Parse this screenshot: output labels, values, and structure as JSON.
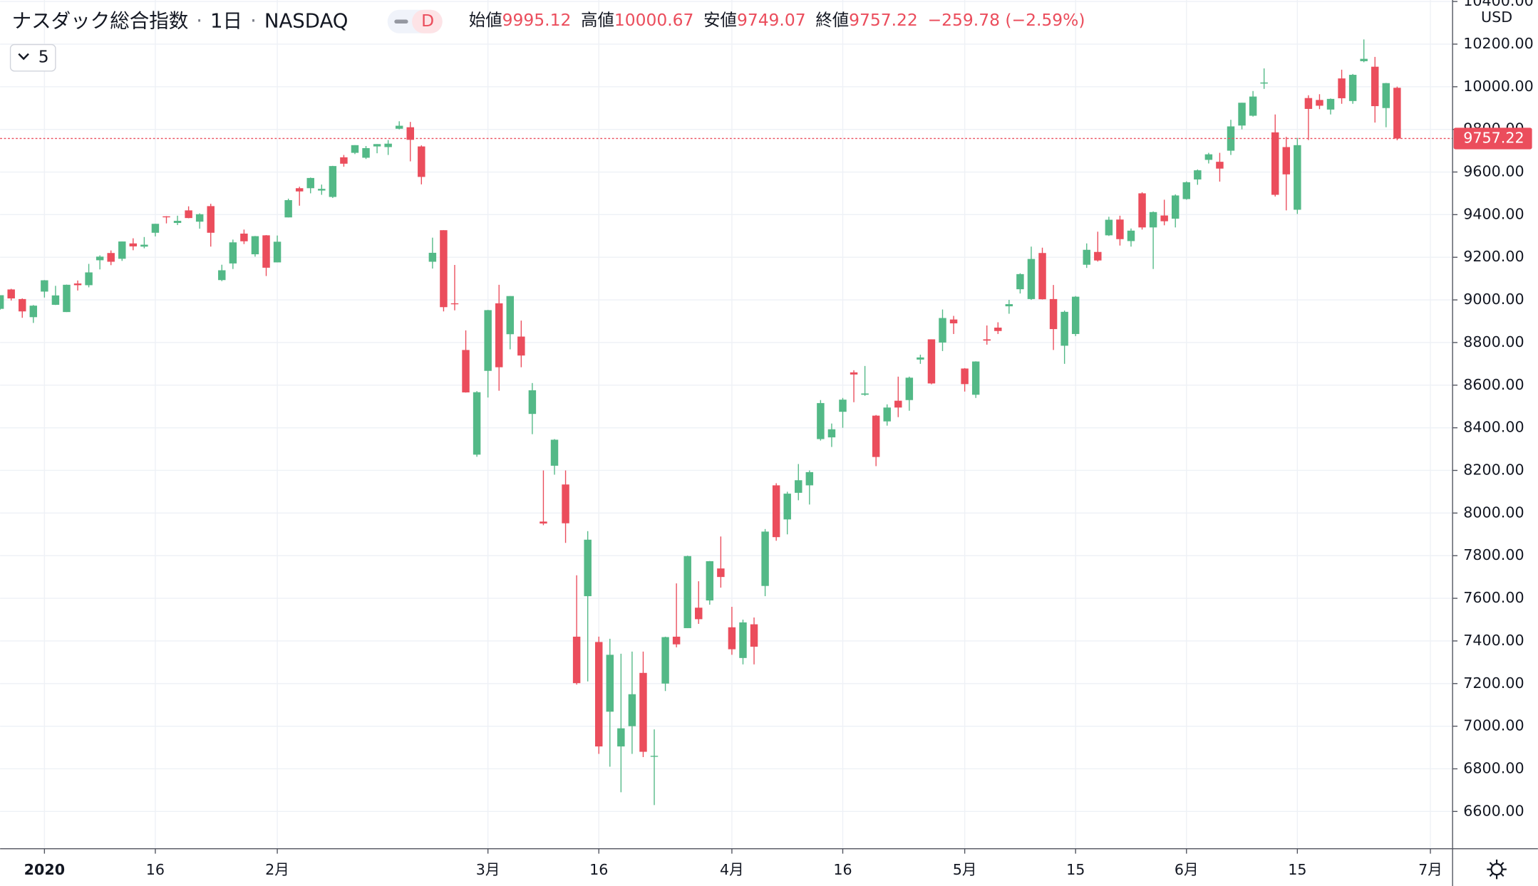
{
  "header": {
    "title": "ナスダック総合指数",
    "interval": "1日",
    "exchange": "NASDAQ",
    "badge": "D",
    "ohlc": [
      {
        "label": "始値",
        "value": 9995.12
      },
      {
        "label": "高値",
        "value": 10000.67
      },
      {
        "label": "安値",
        "value": 9749.07
      },
      {
        "label": "終値",
        "value": 9757.22
      }
    ],
    "change": "−259.78 (−2.59%)",
    "indicator_count": 5,
    "currency": "USD"
  },
  "chart_data": {
    "type": "candlestick",
    "up_color": "#53b987",
    "down_color": "#eb4d5c",
    "grid": true,
    "xlim": [
      0,
      131
    ],
    "ylim": [
      6425,
      10407
    ],
    "xticks": [
      {
        "value": 4,
        "label": "2020"
      },
      {
        "value": 14,
        "label": "16"
      },
      {
        "value": 25,
        "label": "2月"
      },
      {
        "value": 44,
        "label": "3月"
      },
      {
        "value": 54,
        "label": "16"
      },
      {
        "value": 66,
        "label": "4月"
      },
      {
        "value": 76,
        "label": "16"
      },
      {
        "value": 87,
        "label": "5月"
      },
      {
        "value": 97,
        "label": "15"
      },
      {
        "value": 107,
        "label": "6月"
      },
      {
        "value": 117,
        "label": "15"
      },
      {
        "value": 129,
        "label": "7月"
      }
    ],
    "yticks": [
      {
        "value": 6600,
        "label": "6600.00"
      },
      {
        "value": 6800,
        "label": "6800.00"
      },
      {
        "value": 7000,
        "label": "7000.00"
      },
      {
        "value": 7200,
        "label": "7200.00"
      },
      {
        "value": 7400,
        "label": "7400.00"
      },
      {
        "value": 7600,
        "label": "7600.00"
      },
      {
        "value": 7800,
        "label": "7800.00"
      },
      {
        "value": 8000,
        "label": "8000.00"
      },
      {
        "value": 8200,
        "label": "8200.00"
      },
      {
        "value": 8400,
        "label": "8400.00"
      },
      {
        "value": 8600,
        "label": "8600.00"
      },
      {
        "value": 8800,
        "label": "8800.00"
      },
      {
        "value": 9000,
        "label": "9000.00"
      },
      {
        "value": 9200,
        "label": "9200.00"
      },
      {
        "value": 9400,
        "label": "9400.00"
      },
      {
        "value": 9600,
        "label": "9600.00"
      },
      {
        "value": 9800,
        "label": "9800.00"
      },
      {
        "value": 10000,
        "label": "10000.00"
      },
      {
        "value": 10200,
        "label": "10200.00"
      },
      {
        "value": 10400,
        "label": "10400.00"
      }
    ],
    "ohlc": [
      [
        8958,
        9022,
        8954,
        9022
      ],
      [
        9049,
        9052,
        8997,
        9007
      ],
      [
        9004,
        9007,
        8916,
        8946
      ],
      [
        8919,
        8976,
        8892,
        8973
      ],
      [
        9039,
        9093,
        9011,
        9092
      ],
      [
        8977,
        9066,
        8976,
        9021
      ],
      [
        8943,
        9072,
        8943,
        9071
      ],
      [
        9077,
        9091,
        9044,
        9069
      ],
      [
        9069,
        9169,
        9059,
        9129
      ],
      [
        9186,
        9209,
        9143,
        9203
      ],
      [
        9220,
        9232,
        9163,
        9179
      ],
      [
        9193,
        9274,
        9183,
        9274
      ],
      [
        9265,
        9289,
        9233,
        9251
      ],
      [
        9250,
        9295,
        9242,
        9259
      ],
      [
        9315,
        9357,
        9298,
        9357
      ],
      [
        9392,
        9393,
        9359,
        9389
      ],
      [
        9361,
        9395,
        9351,
        9371
      ],
      [
        9420,
        9439,
        9383,
        9384
      ],
      [
        9367,
        9406,
        9334,
        9402
      ],
      [
        9440,
        9451,
        9250,
        9315
      ],
      [
        9093,
        9165,
        9088,
        9139
      ],
      [
        9171,
        9283,
        9145,
        9270
      ],
      [
        9311,
        9330,
        9262,
        9275
      ],
      [
        9214,
        9300,
        9203,
        9299
      ],
      [
        9303,
        9304,
        9112,
        9151
      ],
      [
        9176,
        9302,
        9176,
        9273
      ],
      [
        9387,
        9475,
        9387,
        9468
      ],
      [
        9524,
        9531,
        9442,
        9509
      ],
      [
        9524,
        9574,
        9500,
        9572
      ],
      [
        9513,
        9541,
        9493,
        9521
      ],
      [
        9483,
        9629,
        9478,
        9628
      ],
      [
        9669,
        9680,
        9625,
        9639
      ],
      [
        9690,
        9726,
        9684,
        9726
      ],
      [
        9667,
        9722,
        9661,
        9712
      ],
      [
        9720,
        9731,
        9688,
        9731
      ],
      [
        9717,
        9750,
        9680,
        9733
      ],
      [
        9803,
        9838,
        9800,
        9817
      ],
      [
        9810,
        9835,
        9650,
        9751
      ],
      [
        9720,
        9725,
        9542,
        9577
      ],
      [
        9179,
        9292,
        9147,
        9221
      ],
      [
        9327,
        9327,
        8946,
        8966
      ],
      [
        8984,
        9164,
        8951,
        8981
      ],
      [
        8765,
        8857,
        8565,
        8566
      ],
      [
        8274,
        8572,
        8264,
        8567
      ],
      [
        8667,
        8953,
        8542,
        8952
      ],
      [
        8984,
        9071,
        8574,
        8684
      ],
      [
        8839,
        9018,
        8768,
        9018
      ],
      [
        8828,
        8903,
        8684,
        8739
      ],
      [
        8465,
        8610,
        8370,
        8576
      ],
      [
        7960,
        8200,
        7943,
        7951
      ],
      [
        8222,
        8347,
        8180,
        8344
      ],
      [
        8134,
        8200,
        7860,
        7952
      ],
      [
        7420,
        7708,
        7195,
        7202
      ],
      [
        7610,
        7915,
        7210,
        7875
      ],
      [
        7395,
        7420,
        6870,
        6905
      ],
      [
        7068,
        7410,
        6810,
        7335
      ],
      [
        6905,
        7340,
        6690,
        6990
      ],
      [
        7000,
        7350,
        6870,
        7150
      ],
      [
        7250,
        7350,
        6855,
        6880
      ],
      [
        6860,
        6985,
        6630,
        6861
      ],
      [
        7200,
        7420,
        7165,
        7418
      ],
      [
        7420,
        7670,
        7370,
        7384
      ],
      [
        7460,
        7800,
        7460,
        7798
      ],
      [
        7556,
        7680,
        7480,
        7502
      ],
      [
        7590,
        7775,
        7570,
        7774
      ],
      [
        7740,
        7890,
        7650,
        7700
      ],
      [
        7464,
        7560,
        7335,
        7361
      ],
      [
        7320,
        7500,
        7290,
        7487
      ],
      [
        7478,
        7510,
        7290,
        7373
      ],
      [
        7658,
        7925,
        7610,
        7913
      ],
      [
        8130,
        8140,
        7870,
        7887
      ],
      [
        7970,
        8100,
        7900,
        8091
      ],
      [
        8095,
        8230,
        8060,
        8154
      ],
      [
        8130,
        8200,
        8040,
        8192
      ],
      [
        8347,
        8530,
        8340,
        8516
      ],
      [
        8355,
        8420,
        8310,
        8393
      ],
      [
        8475,
        8540,
        8400,
        8532
      ],
      [
        8660,
        8670,
        8520,
        8650
      ],
      [
        8555,
        8690,
        8550,
        8561
      ],
      [
        8457,
        8460,
        8220,
        8263
      ],
      [
        8430,
        8510,
        8410,
        8495
      ],
      [
        8527,
        8640,
        8450,
        8495
      ],
      [
        8530,
        8640,
        8480,
        8635
      ],
      [
        8720,
        8743,
        8700,
        8730
      ],
      [
        8815,
        8815,
        8604,
        8608
      ],
      [
        8800,
        8955,
        8760,
        8915
      ],
      [
        8908,
        8925,
        8840,
        8890
      ],
      [
        8678,
        8680,
        8570,
        8605
      ],
      [
        8555,
        8712,
        8540,
        8711
      ],
      [
        8815,
        8880,
        8790,
        8809
      ],
      [
        8870,
        8895,
        8840,
        8854
      ],
      [
        8970,
        9000,
        8935,
        8980
      ],
      [
        9050,
        9125,
        9030,
        9121
      ],
      [
        9004,
        9250,
        9000,
        9192
      ],
      [
        9220,
        9245,
        9002,
        9003
      ],
      [
        9004,
        9070,
        8765,
        8863
      ],
      [
        8785,
        8950,
        8700,
        8944
      ],
      [
        8840,
        9018,
        8830,
        9015
      ],
      [
        9165,
        9265,
        9150,
        9235
      ],
      [
        9225,
        9320,
        9180,
        9185
      ],
      [
        9303,
        9390,
        9300,
        9376
      ],
      [
        9377,
        9395,
        9255,
        9285
      ],
      [
        9276,
        9335,
        9250,
        9325
      ],
      [
        9500,
        9505,
        9330,
        9340
      ],
      [
        9340,
        9415,
        9145,
        9412
      ],
      [
        9396,
        9470,
        9350,
        9369
      ],
      [
        9381,
        9495,
        9340,
        9490
      ],
      [
        9473,
        9556,
        9470,
        9552
      ],
      [
        9565,
        9612,
        9540,
        9608
      ],
      [
        9657,
        9690,
        9640,
        9683
      ],
      [
        9648,
        9690,
        9555,
        9616
      ],
      [
        9700,
        9845,
        9680,
        9814
      ],
      [
        9818,
        9925,
        9800,
        9925
      ],
      [
        9864,
        9980,
        9860,
        9954
      ],
      [
        10015,
        10086,
        9990,
        10020
      ],
      [
        9786,
        9870,
        9485,
        9493
      ],
      [
        9717,
        9765,
        9420,
        9589
      ],
      [
        9423,
        9760,
        9403,
        9726
      ],
      [
        9947,
        9960,
        9750,
        9896
      ],
      [
        9938,
        9965,
        9895,
        9911
      ],
      [
        9893,
        9945,
        9870,
        9943
      ],
      [
        10039,
        10080,
        9920,
        9946
      ],
      [
        9933,
        10060,
        9920,
        10056
      ],
      [
        10120,
        10222,
        10115,
        10131
      ],
      [
        10094,
        10140,
        9832,
        9909
      ],
      [
        9900,
        10018,
        9810,
        10017
      ],
      [
        9995.12,
        10000.67,
        9749.07,
        9757.22
      ]
    ]
  }
}
